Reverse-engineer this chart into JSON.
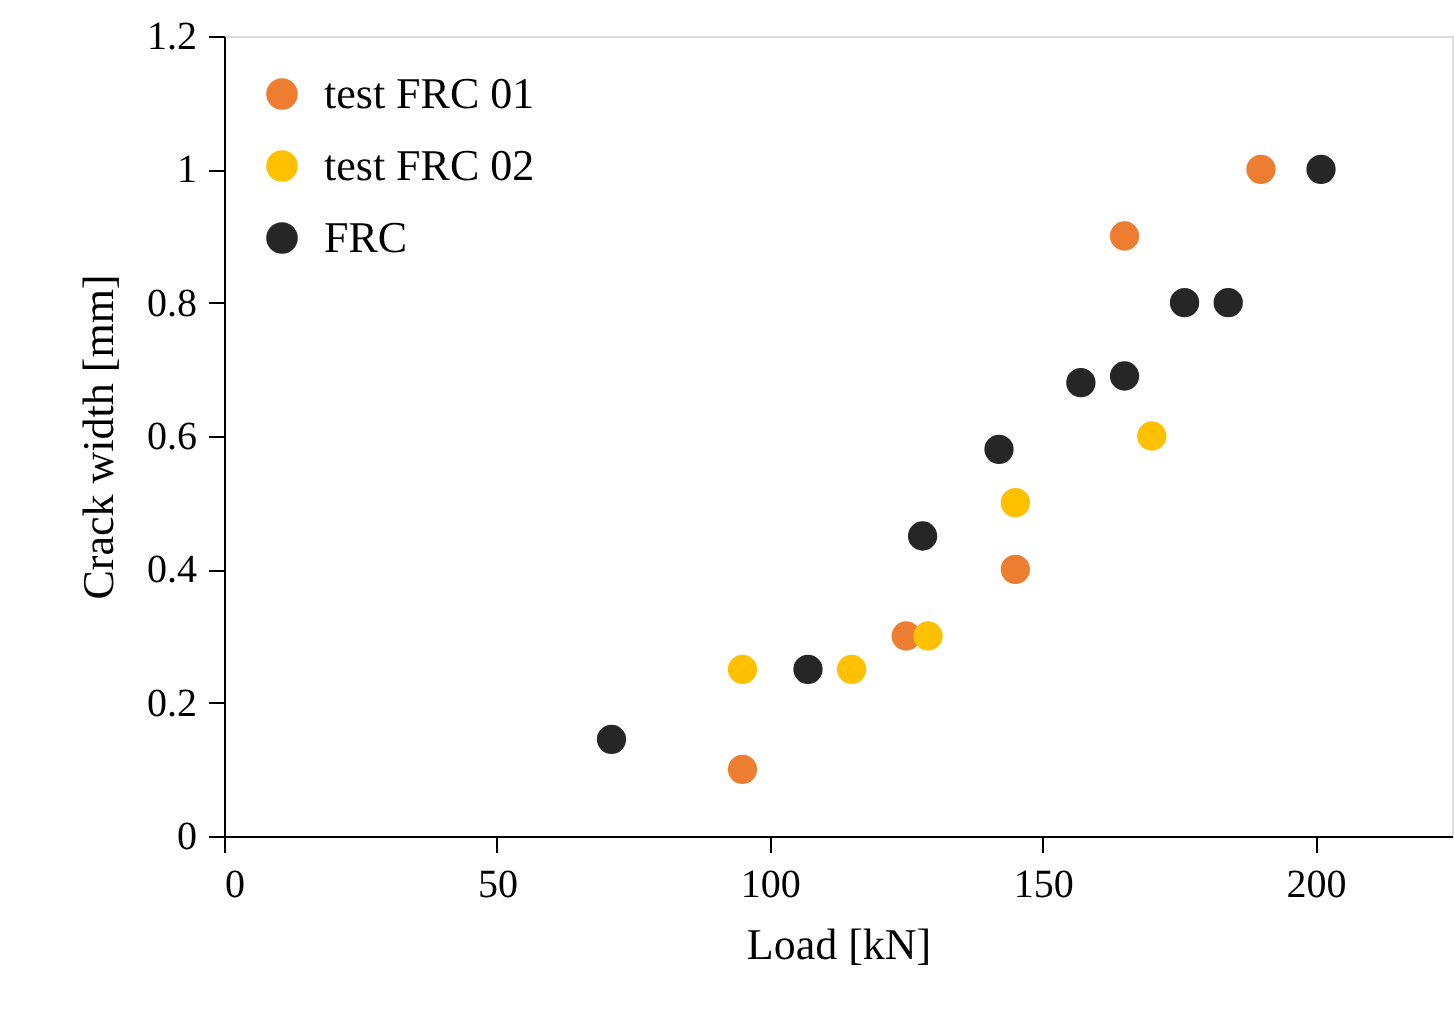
{
  "chart_data": {
    "type": "scatter",
    "xlabel": "Load [kN]",
    "ylabel": "Crack width [mm]",
    "xlim": [
      0,
      225
    ],
    "xticks": [
      0,
      50,
      100,
      150,
      200
    ],
    "ylim": [
      0,
      1.2
    ],
    "yticks": [
      {
        "value": 0,
        "label": "0"
      },
      0.2,
      0.4,
      0.6,
      0.8,
      {
        "value": 1,
        "label": "1"
      },
      1.2
    ],
    "grid": false,
    "legend": "top left",
    "marker": "circle",
    "series": [
      {
        "name": "test FRC 01",
        "color": "#ed7d31",
        "x": [
          95,
          125,
          145,
          165,
          190
        ],
        "values": [
          0.1,
          0.3,
          0.4,
          0.9,
          1.0
        ]
      },
      {
        "name": "test FRC 02",
        "color": "#ffc000",
        "x": [
          95,
          115,
          129,
          145,
          170
        ],
        "values": [
          0.25,
          0.25,
          0.3,
          0.5,
          0.6
        ]
      },
      {
        "name": "FRC",
        "color": "#262626",
        "x": [
          71,
          107,
          128,
          142,
          157,
          165,
          176,
          184,
          201
        ],
        "values": [
          0.145,
          0.25,
          0.45,
          0.58,
          0.68,
          0.69,
          0.8,
          0.8,
          1.0
        ]
      }
    ]
  }
}
